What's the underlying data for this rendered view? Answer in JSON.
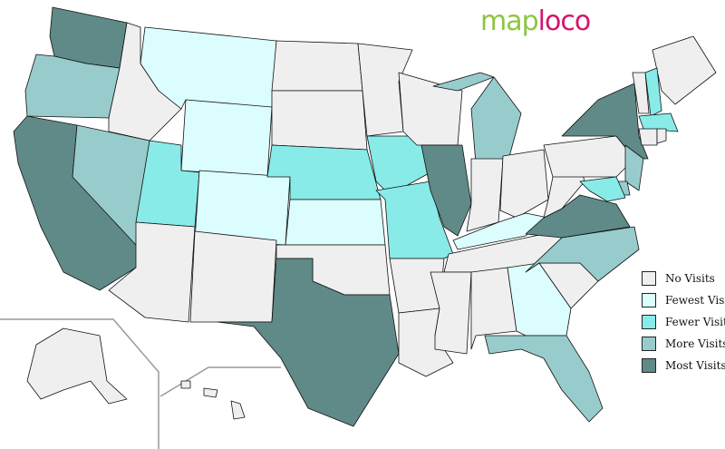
{
  "logo": {
    "part1": "map",
    "part2": "loco"
  },
  "legend": [
    {
      "label": "No Visits",
      "color": "#efefef",
      "level": "none"
    },
    {
      "label": "Fewest Visits",
      "color": "#dcfdfd",
      "level": "fewest"
    },
    {
      "label": "Fewer Visits",
      "color": "#88ebe8",
      "level": "fewer"
    },
    {
      "label": "More Visits",
      "color": "#98cccc",
      "level": "more"
    },
    {
      "label": "Most Visits",
      "color": "#5f8a88",
      "level": "most"
    }
  ],
  "states": {
    "WA": "most",
    "OR": "more",
    "CA": "most",
    "NV": "more",
    "ID": "none",
    "MT": "fewest",
    "WY": "fewest",
    "UT": "fewer",
    "CO": "fewest",
    "AZ": "none",
    "NM": "none",
    "ND": "none",
    "SD": "none",
    "NE": "fewer",
    "KS": "fewest",
    "OK": "none",
    "TX": "most",
    "MN": "none",
    "IA": "fewer",
    "MO": "fewer",
    "AR": "none",
    "LA": "none",
    "WI": "none",
    "IL": "most",
    "MI": "more",
    "IN": "none",
    "OH": "none",
    "KY": "fewest",
    "TN": "none",
    "MS": "none",
    "AL": "none",
    "GA": "fewest",
    "FL": "more",
    "SC": "none",
    "NC": "more",
    "VA": "most",
    "WV": "none",
    "PA": "none",
    "NY": "most",
    "ME": "none",
    "NH": "fewer",
    "VT": "none",
    "MA": "fewer",
    "CT": "none",
    "RI": "none",
    "NJ": "more",
    "DE": "more",
    "MD": "fewer",
    "AK": "none",
    "HI": "none"
  }
}
